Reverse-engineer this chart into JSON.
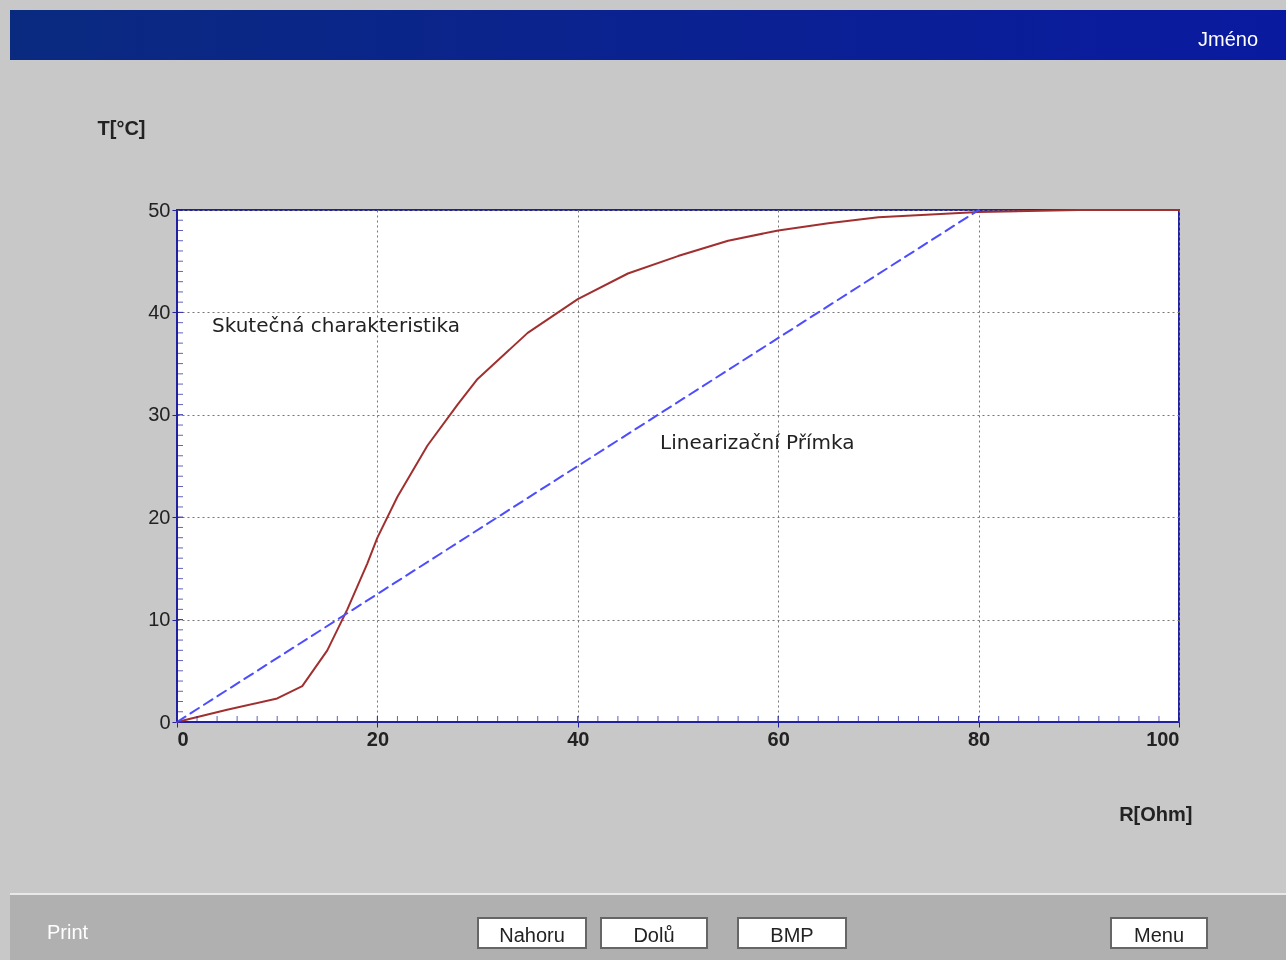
{
  "chart_data": {
    "type": "line",
    "title": "Jméno",
    "xlabel": "R[Ohm]",
    "ylabel": "T[°C]",
    "xlim": [
      0,
      100
    ],
    "xticks": [
      0,
      20,
      40,
      60,
      80,
      100
    ],
    "ylim": [
      0,
      50
    ],
    "yticks": [
      0,
      10,
      20,
      30,
      40,
      50
    ],
    "grid": true,
    "marker": "none",
    "series": [
      {
        "name": "Skutečná charakteristika",
        "color": "#a0302f",
        "line_style": "solid",
        "x": [
          0,
          5,
          10,
          12.5,
          15,
          17,
          19,
          20,
          22,
          25,
          28,
          30,
          35,
          40,
          45,
          50,
          55,
          60,
          65,
          70,
          80,
          90,
          100
        ],
        "values": [
          0,
          1.2,
          2.3,
          3.5,
          7,
          11,
          15.5,
          18,
          22,
          27,
          31,
          33.5,
          38,
          41.3,
          43.8,
          45.5,
          47,
          48,
          48.7,
          49.3,
          49.8,
          50,
          50
        ]
      },
      {
        "name": "Linearizační Přímka",
        "color": "#4d4dff",
        "line_style": "dashed",
        "x": [
          0,
          80
        ],
        "values": [
          0,
          50
        ]
      }
    ],
    "annotations": [
      "Print",
      "Nahoru",
      "Dolů",
      "BMP",
      "Menu"
    ]
  }
}
